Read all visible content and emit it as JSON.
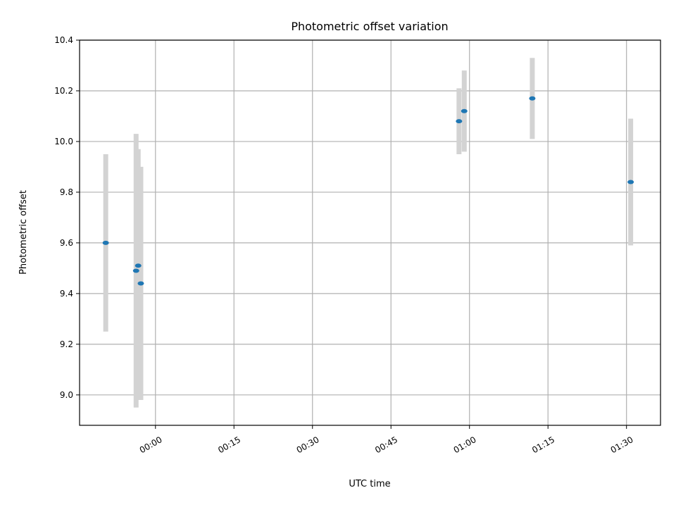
{
  "chart_data": {
    "type": "scatter",
    "title": "Photometric offset variation",
    "xlabel": "UTC time",
    "ylabel": "Photometric offset",
    "x_unit": "minutes",
    "xlim": [
      -14.5,
      96.5
    ],
    "ylim": [
      8.88,
      10.4
    ],
    "x_ticks": [
      "00:00",
      "00:15",
      "00:30",
      "00:45",
      "01:00",
      "01:15",
      "01:30"
    ],
    "y_ticks": [
      "9.0",
      "9.2",
      "9.4",
      "9.6",
      "9.8",
      "10.0",
      "10.2",
      "10.4"
    ],
    "grid": true,
    "marker_color": "#1f77b4",
    "errorbar_color": "#d3d3d3",
    "points": [
      {
        "x": -9.5,
        "y": 9.6,
        "yerr": 0.35
      },
      {
        "x": -3.7,
        "y": 9.49,
        "yerr": 0.54
      },
      {
        "x": -3.3,
        "y": 9.51,
        "yerr": 0.46
      },
      {
        "x": -2.8,
        "y": 9.44,
        "yerr": 0.46
      },
      {
        "x": 58.0,
        "y": 10.08,
        "yerr": 0.13
      },
      {
        "x": 59.0,
        "y": 10.12,
        "yerr": 0.16
      },
      {
        "x": 72.0,
        "y": 10.17,
        "yerr": 0.16
      },
      {
        "x": 90.8,
        "y": 9.84,
        "yerr": 0.25
      }
    ]
  }
}
